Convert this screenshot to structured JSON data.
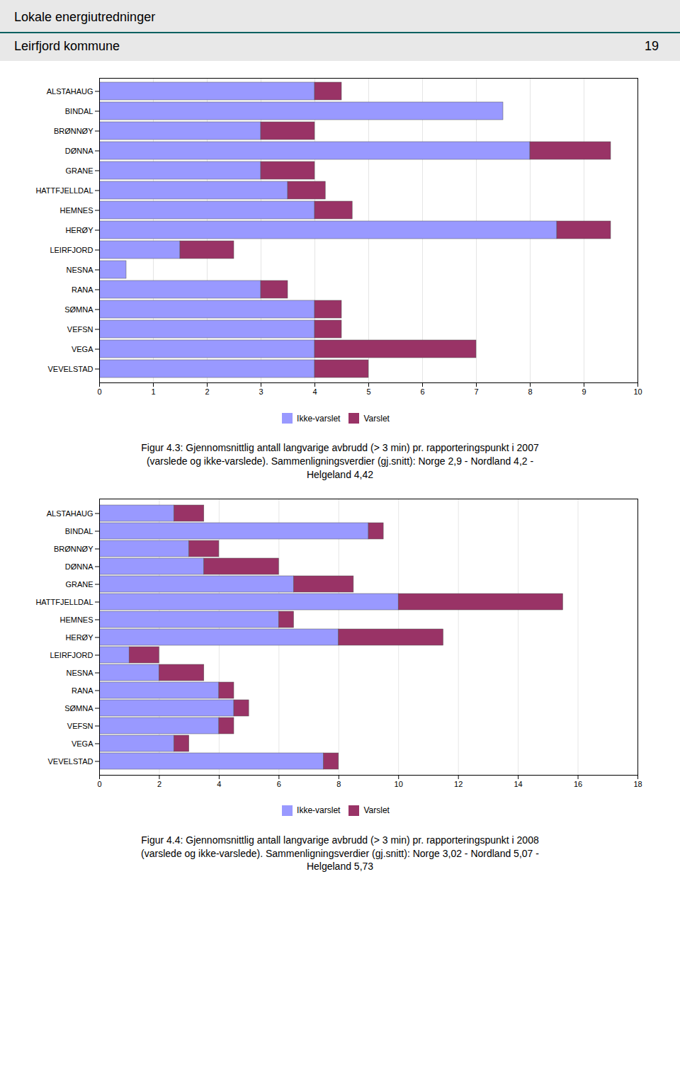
{
  "title": "Lokale energiutredninger",
  "subtitle": "Leirfjord kommune",
  "annotations": [
    "19"
  ],
  "chart_data": [
    {
      "type": "bar",
      "orientation": "horizontal",
      "stacked": true,
      "grid": true,
      "legend": "bottom",
      "title": "Figur 4.3:  Gjennomsnittlig antall langvarige avbrudd (> 3 min) pr. rapporteringspunkt i 2007\n(varslede og ikke-varslede). Sammenligningsverdier (gj.snitt): Norge 2,9 - Nordland 4,2 -\nHelgeland 4,42",
      "categories": [
        "VEVELSTAD",
        "VEGA",
        "VEFSN",
        "SØMNA",
        "RANA",
        "NESNA",
        "LEIRFJORD",
        "HERØY",
        "HEMNES",
        "HATTFJELLDAL",
        "GRANE",
        "DØNNA",
        "BRØNNØY",
        "BINDAL",
        "ALSTAHAUG"
      ],
      "series": [
        {
          "name": "Ikke-varslet",
          "color": "#9999ff",
          "values": [
            4.0,
            4.0,
            4.0,
            4.0,
            3.0,
            0.5,
            1.5,
            8.5,
            4.0,
            3.5,
            3.0,
            8.0,
            3.0,
            7.5,
            4.0
          ]
        },
        {
          "name": "Varslet",
          "color": "#993366",
          "values": [
            1.0,
            3.0,
            0.5,
            0.5,
            0.5,
            0.0,
            1.0,
            1.0,
            0.7,
            0.7,
            1.0,
            1.5,
            1.0,
            0.0,
            0.5
          ]
        }
      ],
      "xlim": [
        0,
        10
      ],
      "xticks": [
        0,
        1,
        2,
        3,
        4,
        5,
        6,
        7,
        8,
        9,
        10
      ]
    },
    {
      "type": "bar",
      "orientation": "horizontal",
      "stacked": true,
      "grid": true,
      "legend": "bottom",
      "title": "Figur 4.4:  Gjennomsnittlig antall langvarige avbrudd (> 3 min) pr. rapporteringspunkt i 2008\n(varslede og ikke-varslede). Sammenligningsverdier (gj.snitt): Norge 3,02 - Nordland 5,07 -\nHelgeland 5,73",
      "categories": [
        "VEVELSTAD",
        "VEGA",
        "VEFSN",
        "SØMNA",
        "RANA",
        "NESNA",
        "LEIRFJORD",
        "HERØY",
        "HEMNES",
        "HATTFJELLDAL",
        "GRANE",
        "DØNNA",
        "BRØNNØY",
        "BINDAL",
        "ALSTAHAUG"
      ],
      "series": [
        {
          "name": "Ikke-varslet",
          "color": "#9999ff",
          "values": [
            7.5,
            2.5,
            4.0,
            4.5,
            4.0,
            2.0,
            1.0,
            8.0,
            6.0,
            10.0,
            6.5,
            3.5,
            3.0,
            9.0,
            2.5
          ]
        },
        {
          "name": "Varslet",
          "color": "#993366",
          "values": [
            0.5,
            0.5,
            0.5,
            0.5,
            0.5,
            1.5,
            1.0,
            3.5,
            0.5,
            5.5,
            2.0,
            2.5,
            1.0,
            0.5,
            1.0
          ]
        }
      ],
      "xlim": [
        0,
        18
      ],
      "xticks": [
        0,
        2,
        4,
        6,
        8,
        10,
        12,
        14,
        16,
        18
      ]
    }
  ]
}
